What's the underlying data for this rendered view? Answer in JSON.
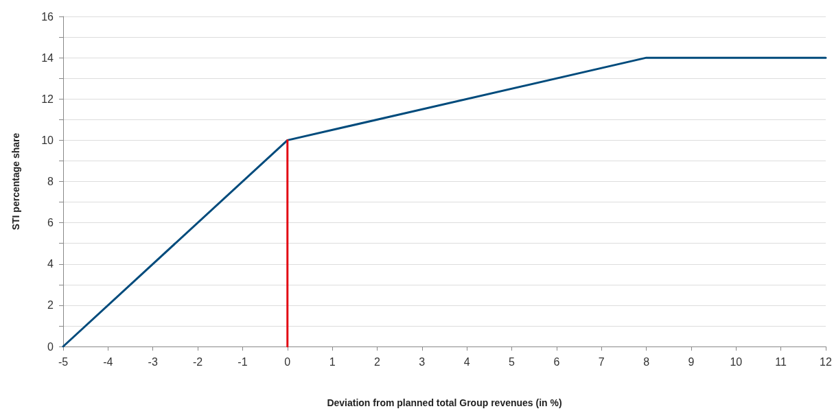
{
  "chart_data": {
    "type": "line",
    "xlabel": "Deviation from planned total Group revenues (in %)",
    "ylabel": "STI percentage share",
    "series": [
      {
        "color": "#004b7c",
        "x": [
          -5,
          0,
          8,
          12
        ],
        "values": [
          0,
          10,
          14,
          14
        ]
      },
      {
        "color": "#e30613",
        "x": [
          0,
          0
        ],
        "values": [
          0,
          10
        ]
      }
    ],
    "xlim": [
      -5,
      12
    ],
    "xticks": [
      -5,
      -4,
      -3,
      -2,
      -1,
      0,
      1,
      2,
      3,
      4,
      5,
      6,
      7,
      8,
      9,
      10,
      11,
      12
    ],
    "ylim": [
      0,
      16
    ],
    "yticks": [
      0,
      {
        "value": 1,
        "label": null
      },
      2,
      {
        "value": 3,
        "label": null
      },
      4,
      {
        "value": 5,
        "label": null
      },
      6,
      {
        "value": 7,
        "label": null
      },
      8,
      {
        "value": 9,
        "label": null
      },
      10,
      {
        "value": 11,
        "label": null
      },
      12,
      {
        "value": 13,
        "label": null
      },
      14,
      {
        "value": 15,
        "label": null
      },
      16
    ],
    "grid": "y",
    "marker": "none",
    "line_style": "solid"
  }
}
